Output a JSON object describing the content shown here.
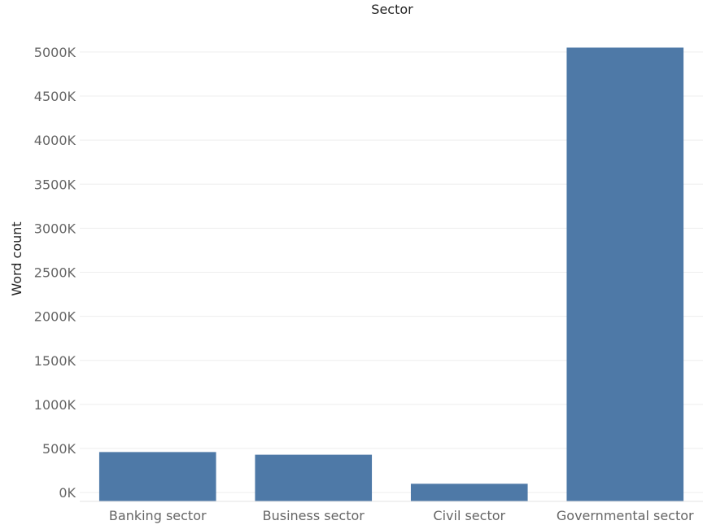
{
  "chart_data": {
    "type": "bar",
    "title": "Sector",
    "xlabel": "",
    "ylabel": "Word count",
    "categories": [
      "Banking sector",
      "Business sector",
      "Civil sector",
      "Governmental sector"
    ],
    "values": [
      460000,
      430000,
      100000,
      5050000
    ],
    "ylim": [
      -100000,
      5350000
    ],
    "yticks": [
      0,
      500000,
      1000000,
      1500000,
      2000000,
      2500000,
      3000000,
      3500000,
      4000000,
      4500000,
      5000000
    ],
    "ytick_labels": [
      "0K",
      "500K",
      "1000K",
      "1500K",
      "2000K",
      "2500K",
      "3000K",
      "3500K",
      "4000K",
      "4500K",
      "5000K"
    ],
    "grid": true,
    "legend": "none",
    "colors": {
      "bar": "#4e79a7"
    }
  }
}
